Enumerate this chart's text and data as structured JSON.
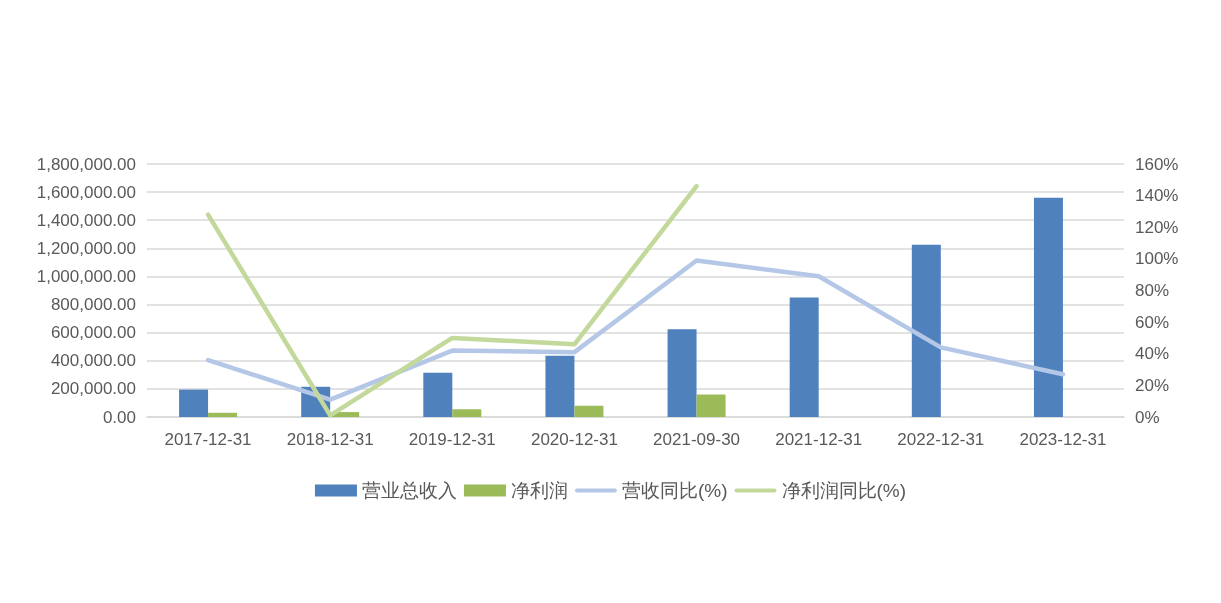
{
  "chart_data": {
    "type": "bar",
    "categories": [
      "2017-12-31",
      "2018-12-31",
      "2019-12-31",
      "2020-12-31",
      "2021-09-30",
      "2021-12-31",
      "2022-12-31",
      "2023-12-31"
    ],
    "series": [
      {
        "name": "营业总收入",
        "color": "#4f81bd",
        "values": [
          195000,
          215000,
          315000,
          435000,
          625000,
          850000,
          1225000,
          1560000
        ]
      },
      {
        "name": "净利润",
        "color": "#9bbb59",
        "values": [
          30000,
          35000,
          55000,
          80000,
          160000,
          null,
          null,
          null
        ]
      },
      {
        "name": "营收同比(%)",
        "type": "line",
        "axis": "y2",
        "color": "#b4c7e7",
        "values": [
          36,
          11,
          42,
          41,
          99,
          89,
          44,
          27
        ]
      },
      {
        "name": "净利润同比(%)",
        "type": "line",
        "axis": "y2",
        "color": "#c3d89b",
        "values": [
          128,
          1,
          50,
          46,
          146,
          null,
          null,
          null
        ]
      }
    ],
    "ylim": [
      0,
      1800000
    ],
    "yticks": [
      {
        "value": 0,
        "label": "0.00"
      },
      {
        "value": 200000,
        "label": "200,000.00"
      },
      {
        "value": 400000,
        "label": "400,000.00"
      },
      {
        "value": 600000,
        "label": "600,000.00"
      },
      {
        "value": 800000,
        "label": "800,000.00"
      },
      {
        "value": 1000000,
        "label": "1,000,000.00"
      },
      {
        "value": 1200000,
        "label": "1,200,000.00"
      },
      {
        "value": 1400000,
        "label": "1,400,000.00"
      },
      {
        "value": 1600000,
        "label": "1,600,000.00"
      },
      {
        "value": 1800000,
        "label": "1,800,000.00"
      }
    ],
    "y2lim": [
      0,
      160
    ],
    "y2ticks": [
      {
        "value": 0,
        "label": "0%"
      },
      {
        "value": 20,
        "label": "20%"
      },
      {
        "value": 40,
        "label": "40%"
      },
      {
        "value": 60,
        "label": "60%"
      },
      {
        "value": 80,
        "label": "80%"
      },
      {
        "value": 100,
        "label": "100%"
      },
      {
        "value": 120,
        "label": "120%"
      },
      {
        "value": 140,
        "label": "140%"
      },
      {
        "value": 160,
        "label": "160%"
      }
    ],
    "grid": "y",
    "legend": "bottom",
    "marker": "none",
    "line_style": "solid"
  }
}
